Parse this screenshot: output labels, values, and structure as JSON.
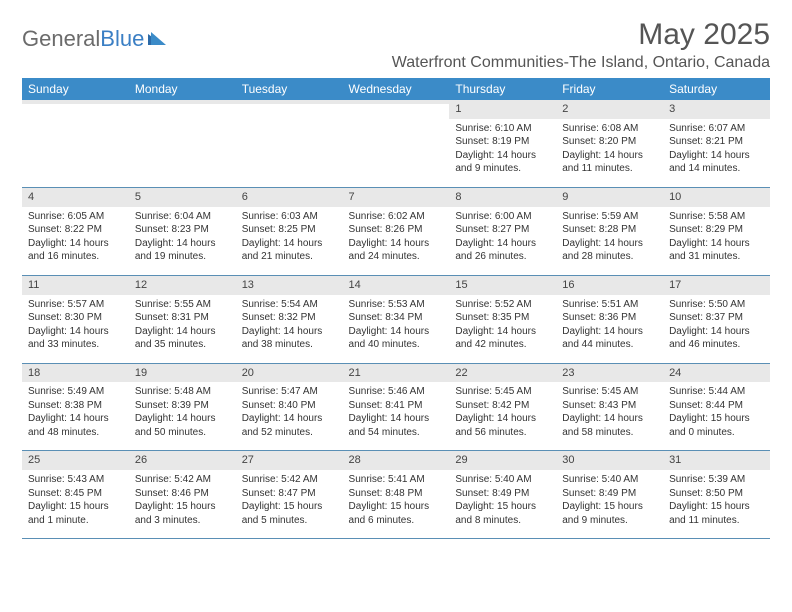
{
  "logo": {
    "text1": "General",
    "text2": "Blue"
  },
  "title": "May 2025",
  "location": "Waterfront Communities-The Island, Ontario, Canada",
  "colors": {
    "header_bg": "#3b8bc8",
    "header_text": "#ffffff",
    "daynum_bg": "#e8e8e8",
    "border": "#5a8fb5",
    "logo_gray": "#6b6b6b",
    "logo_blue": "#3b7fc4"
  },
  "day_names": [
    "Sunday",
    "Monday",
    "Tuesday",
    "Wednesday",
    "Thursday",
    "Friday",
    "Saturday"
  ],
  "weeks": [
    [
      {
        "n": "",
        "sr": "",
        "ss": "",
        "dl": ""
      },
      {
        "n": "",
        "sr": "",
        "ss": "",
        "dl": ""
      },
      {
        "n": "",
        "sr": "",
        "ss": "",
        "dl": ""
      },
      {
        "n": "",
        "sr": "",
        "ss": "",
        "dl": ""
      },
      {
        "n": "1",
        "sr": "Sunrise: 6:10 AM",
        "ss": "Sunset: 8:19 PM",
        "dl": "Daylight: 14 hours and 9 minutes."
      },
      {
        "n": "2",
        "sr": "Sunrise: 6:08 AM",
        "ss": "Sunset: 8:20 PM",
        "dl": "Daylight: 14 hours and 11 minutes."
      },
      {
        "n": "3",
        "sr": "Sunrise: 6:07 AM",
        "ss": "Sunset: 8:21 PM",
        "dl": "Daylight: 14 hours and 14 minutes."
      }
    ],
    [
      {
        "n": "4",
        "sr": "Sunrise: 6:05 AM",
        "ss": "Sunset: 8:22 PM",
        "dl": "Daylight: 14 hours and 16 minutes."
      },
      {
        "n": "5",
        "sr": "Sunrise: 6:04 AM",
        "ss": "Sunset: 8:23 PM",
        "dl": "Daylight: 14 hours and 19 minutes."
      },
      {
        "n": "6",
        "sr": "Sunrise: 6:03 AM",
        "ss": "Sunset: 8:25 PM",
        "dl": "Daylight: 14 hours and 21 minutes."
      },
      {
        "n": "7",
        "sr": "Sunrise: 6:02 AM",
        "ss": "Sunset: 8:26 PM",
        "dl": "Daylight: 14 hours and 24 minutes."
      },
      {
        "n": "8",
        "sr": "Sunrise: 6:00 AM",
        "ss": "Sunset: 8:27 PM",
        "dl": "Daylight: 14 hours and 26 minutes."
      },
      {
        "n": "9",
        "sr": "Sunrise: 5:59 AM",
        "ss": "Sunset: 8:28 PM",
        "dl": "Daylight: 14 hours and 28 minutes."
      },
      {
        "n": "10",
        "sr": "Sunrise: 5:58 AM",
        "ss": "Sunset: 8:29 PM",
        "dl": "Daylight: 14 hours and 31 minutes."
      }
    ],
    [
      {
        "n": "11",
        "sr": "Sunrise: 5:57 AM",
        "ss": "Sunset: 8:30 PM",
        "dl": "Daylight: 14 hours and 33 minutes."
      },
      {
        "n": "12",
        "sr": "Sunrise: 5:55 AM",
        "ss": "Sunset: 8:31 PM",
        "dl": "Daylight: 14 hours and 35 minutes."
      },
      {
        "n": "13",
        "sr": "Sunrise: 5:54 AM",
        "ss": "Sunset: 8:32 PM",
        "dl": "Daylight: 14 hours and 38 minutes."
      },
      {
        "n": "14",
        "sr": "Sunrise: 5:53 AM",
        "ss": "Sunset: 8:34 PM",
        "dl": "Daylight: 14 hours and 40 minutes."
      },
      {
        "n": "15",
        "sr": "Sunrise: 5:52 AM",
        "ss": "Sunset: 8:35 PM",
        "dl": "Daylight: 14 hours and 42 minutes."
      },
      {
        "n": "16",
        "sr": "Sunrise: 5:51 AM",
        "ss": "Sunset: 8:36 PM",
        "dl": "Daylight: 14 hours and 44 minutes."
      },
      {
        "n": "17",
        "sr": "Sunrise: 5:50 AM",
        "ss": "Sunset: 8:37 PM",
        "dl": "Daylight: 14 hours and 46 minutes."
      }
    ],
    [
      {
        "n": "18",
        "sr": "Sunrise: 5:49 AM",
        "ss": "Sunset: 8:38 PM",
        "dl": "Daylight: 14 hours and 48 minutes."
      },
      {
        "n": "19",
        "sr": "Sunrise: 5:48 AM",
        "ss": "Sunset: 8:39 PM",
        "dl": "Daylight: 14 hours and 50 minutes."
      },
      {
        "n": "20",
        "sr": "Sunrise: 5:47 AM",
        "ss": "Sunset: 8:40 PM",
        "dl": "Daylight: 14 hours and 52 minutes."
      },
      {
        "n": "21",
        "sr": "Sunrise: 5:46 AM",
        "ss": "Sunset: 8:41 PM",
        "dl": "Daylight: 14 hours and 54 minutes."
      },
      {
        "n": "22",
        "sr": "Sunrise: 5:45 AM",
        "ss": "Sunset: 8:42 PM",
        "dl": "Daylight: 14 hours and 56 minutes."
      },
      {
        "n": "23",
        "sr": "Sunrise: 5:45 AM",
        "ss": "Sunset: 8:43 PM",
        "dl": "Daylight: 14 hours and 58 minutes."
      },
      {
        "n": "24",
        "sr": "Sunrise: 5:44 AM",
        "ss": "Sunset: 8:44 PM",
        "dl": "Daylight: 15 hours and 0 minutes."
      }
    ],
    [
      {
        "n": "25",
        "sr": "Sunrise: 5:43 AM",
        "ss": "Sunset: 8:45 PM",
        "dl": "Daylight: 15 hours and 1 minute."
      },
      {
        "n": "26",
        "sr": "Sunrise: 5:42 AM",
        "ss": "Sunset: 8:46 PM",
        "dl": "Daylight: 15 hours and 3 minutes."
      },
      {
        "n": "27",
        "sr": "Sunrise: 5:42 AM",
        "ss": "Sunset: 8:47 PM",
        "dl": "Daylight: 15 hours and 5 minutes."
      },
      {
        "n": "28",
        "sr": "Sunrise: 5:41 AM",
        "ss": "Sunset: 8:48 PM",
        "dl": "Daylight: 15 hours and 6 minutes."
      },
      {
        "n": "29",
        "sr": "Sunrise: 5:40 AM",
        "ss": "Sunset: 8:49 PM",
        "dl": "Daylight: 15 hours and 8 minutes."
      },
      {
        "n": "30",
        "sr": "Sunrise: 5:40 AM",
        "ss": "Sunset: 8:49 PM",
        "dl": "Daylight: 15 hours and 9 minutes."
      },
      {
        "n": "31",
        "sr": "Sunrise: 5:39 AM",
        "ss": "Sunset: 8:50 PM",
        "dl": "Daylight: 15 hours and 11 minutes."
      }
    ]
  ]
}
